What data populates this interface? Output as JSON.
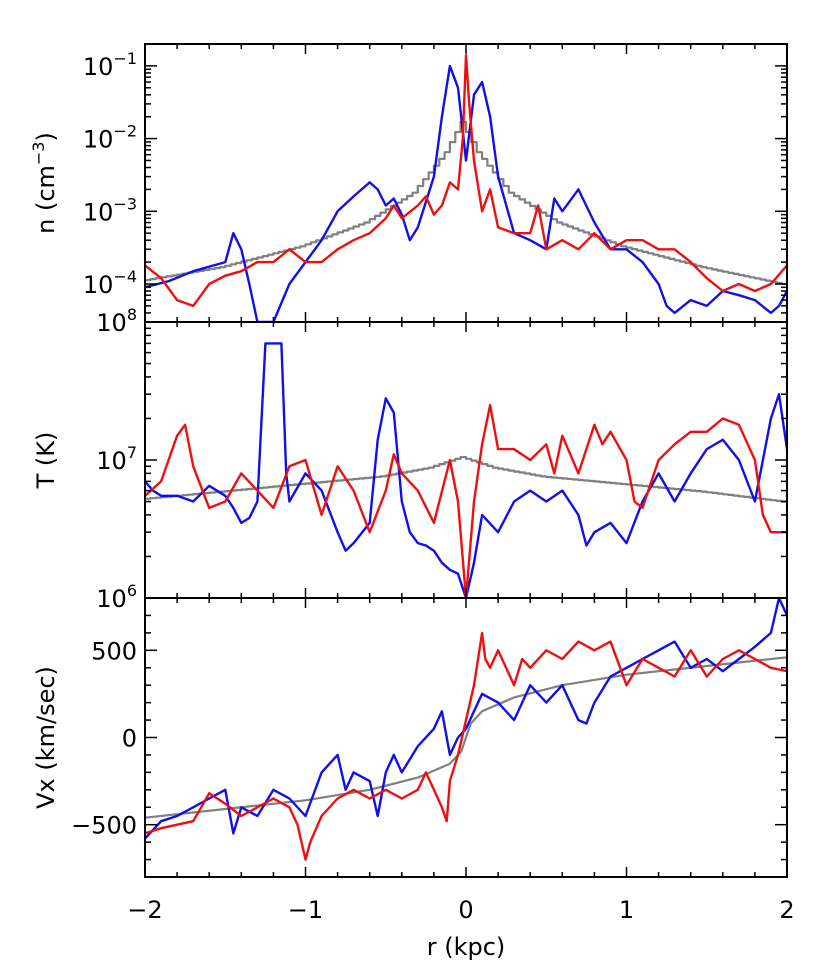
{
  "chart_data": {
    "type": "line",
    "x_label": "r (kpc)",
    "xlim": [
      -2,
      2
    ],
    "x_ticks": [
      -2,
      -1,
      0,
      1,
      2
    ],
    "x_tick_labels": [
      "−2",
      "−1",
      "0",
      "1",
      "2"
    ],
    "colors": {
      "blue": "#1010ee",
      "red": "#ee1010",
      "gray": "#808080"
    },
    "panels": [
      {
        "id": "density",
        "ylabel_main": "n (cm",
        "ylabel_sup": "−3",
        "ylabel_close": ")",
        "y_scale": "log",
        "ylim": [
          3e-05,
          0.2
        ],
        "y_ticks": [
          {
            "value": 0.0001,
            "base": "10",
            "exp": "−4"
          },
          {
            "value": 0.001,
            "base": "10",
            "exp": "−3"
          },
          {
            "value": 0.01,
            "base": "10",
            "exp": "−2"
          },
          {
            "value": 0.1,
            "base": "10",
            "exp": "−1"
          }
        ],
        "series": [
          {
            "color": "gray",
            "step": true,
            "x": [
              -2,
              -1.5,
              -1.0,
              -0.6,
              -0.3,
              -0.1,
              0,
              0.1,
              0.3,
              0.6,
              1.0,
              1.5,
              2
            ],
            "y": [
              0.00011,
              0.00017,
              0.00033,
              0.0007,
              0.0018,
              0.0065,
              0.017,
              0.0065,
              0.0018,
              0.0007,
              0.00033,
              0.00017,
              0.0001
            ]
          },
          {
            "color": "blue",
            "x": [
              -2,
              -1.85,
              -1.7,
              -1.5,
              -1.45,
              -1.4,
              -1.35,
              -1.3,
              -1.2,
              -1.1,
              -1.0,
              -0.9,
              -0.8,
              -0.7,
              -0.6,
              -0.55,
              -0.5,
              -0.45,
              -0.4,
              -0.35,
              -0.3,
              -0.2,
              -0.15,
              -0.1,
              -0.05,
              0,
              0.05,
              0.1,
              0.15,
              0.2,
              0.3,
              0.4,
              0.5,
              0.55,
              0.6,
              0.7,
              0.8,
              0.9,
              1.0,
              1.1,
              1.2,
              1.25,
              1.3,
              1.4,
              1.5,
              1.6,
              1.7,
              1.8,
              1.9,
              1.95,
              2
            ],
            "y": [
              9e-05,
              0.00011,
              0.00015,
              0.0002,
              0.0005,
              0.0003,
              0.0001,
              3e-05,
              3e-05,
              0.0001,
              0.0002,
              0.0004,
              0.001,
              0.0016,
              0.0025,
              0.002,
              0.0012,
              0.0015,
              0.0009,
              0.0004,
              0.0006,
              0.003,
              0.02,
              0.1,
              0.05,
              0.005,
              0.04,
              0.06,
              0.02,
              0.003,
              0.0005,
              0.0004,
              0.0003,
              0.0015,
              0.001,
              0.002,
              0.0007,
              0.0003,
              0.0003,
              0.0002,
              0.0001,
              5e-05,
              4e-05,
              6e-05,
              5e-05,
              8e-05,
              7e-05,
              6e-05,
              4e-05,
              5e-05,
              8e-05
            ]
          },
          {
            "color": "red",
            "x": [
              -2,
              -1.9,
              -1.8,
              -1.7,
              -1.6,
              -1.5,
              -1.4,
              -1.3,
              -1.2,
              -1.1,
              -1.0,
              -0.9,
              -0.8,
              -0.7,
              -0.6,
              -0.5,
              -0.45,
              -0.4,
              -0.3,
              -0.25,
              -0.2,
              -0.15,
              -0.1,
              -0.05,
              -0.02,
              0,
              0.02,
              0.05,
              0.1,
              0.15,
              0.2,
              0.3,
              0.4,
              0.45,
              0.5,
              0.6,
              0.7,
              0.8,
              0.9,
              1.0,
              1.1,
              1.2,
              1.3,
              1.4,
              1.5,
              1.6,
              1.7,
              1.8,
              1.9,
              2
            ],
            "y": [
              0.00018,
              0.00012,
              6e-05,
              5e-05,
              0.0001,
              0.00013,
              0.00015,
              0.0002,
              0.0002,
              0.0003,
              0.0002,
              0.0002,
              0.0003,
              0.0004,
              0.0005,
              0.0008,
              0.0012,
              0.0008,
              0.0012,
              0.0016,
              0.0009,
              0.0012,
              0.0025,
              0.002,
              0.01,
              0.14,
              0.03,
              0.005,
              0.001,
              0.002,
              0.0006,
              0.0005,
              0.0005,
              0.0012,
              0.0003,
              0.0004,
              0.0003,
              0.0005,
              0.0003,
              0.0004,
              0.0004,
              0.0003,
              0.0003,
              0.0002,
              0.00012,
              8e-05,
              0.0001,
              8e-05,
              0.0001,
              0.00018
            ]
          }
        ]
      },
      {
        "id": "temperature",
        "ylabel_main": "T (K)",
        "ylabel_sup": "",
        "ylabel_close": "",
        "y_scale": "log",
        "ylim": [
          1000000.0,
          100000000.0
        ],
        "y_ticks": [
          {
            "value": 1000000.0,
            "base": "10",
            "exp": "6"
          },
          {
            "value": 10000000.0,
            "base": "10",
            "exp": "7"
          },
          {
            "value": 100000000.0,
            "base": "10",
            "exp": "8"
          }
        ],
        "series": [
          {
            "color": "gray",
            "step": true,
            "x": [
              -2,
              -1.5,
              -1.0,
              -0.5,
              -0.2,
              0,
              0.2,
              0.5,
              1.0,
              1.5,
              2
            ],
            "y": [
              5200000.0,
              5900000.0,
              6700000.0,
              7600000.0,
              8800000.0,
              10500000.0,
              8800000.0,
              7600000.0,
              6700000.0,
              5900000.0,
              5000000.0
            ]
          },
          {
            "color": "blue",
            "x": [
              -2,
              -1.95,
              -1.9,
              -1.8,
              -1.7,
              -1.6,
              -1.5,
              -1.45,
              -1.4,
              -1.35,
              -1.3,
              -1.25,
              -1.15,
              -1.12,
              -1.1,
              -1.0,
              -0.9,
              -0.8,
              -0.75,
              -0.7,
              -0.6,
              -0.55,
              -0.5,
              -0.45,
              -0.4,
              -0.35,
              -0.3,
              -0.25,
              -0.2,
              -0.15,
              -0.1,
              -0.05,
              0,
              0.05,
              0.1,
              0.2,
              0.3,
              0.4,
              0.5,
              0.6,
              0.7,
              0.75,
              0.8,
              0.9,
              1.0,
              1.1,
              1.2,
              1.3,
              1.4,
              1.5,
              1.6,
              1.7,
              1.8,
              1.9,
              1.95,
              2
            ],
            "y": [
              7000000.0,
              6000000.0,
              5500000.0,
              5500000.0,
              5000000.0,
              6500000.0,
              5500000.0,
              4500000.0,
              3500000.0,
              3800000.0,
              5000000.0,
              70000000.0,
              70000000.0,
              8000000.0,
              5000000.0,
              8000000.0,
              6000000.0,
              3000000.0,
              2200000.0,
              2500000.0,
              3500000.0,
              14000000.0,
              28000000.0,
              22000000.0,
              5000000.0,
              3000000.0,
              2500000.0,
              2400000.0,
              2200000.0,
              1800000.0,
              1600000.0,
              1500000.0,
              1000000.0,
              1800000.0,
              4000000.0,
              3000000.0,
              5000000.0,
              6000000.0,
              5000000.0,
              6000000.0,
              4000000.0,
              2400000.0,
              3000000.0,
              3500000.0,
              2500000.0,
              5000000.0,
              8000000.0,
              5000000.0,
              8000000.0,
              12000000.0,
              14000000.0,
              10000000.0,
              5000000.0,
              20000000.0,
              30000000.0,
              12000000.0
            ]
          },
          {
            "color": "red",
            "x": [
              -2,
              -1.9,
              -1.8,
              -1.75,
              -1.7,
              -1.6,
              -1.5,
              -1.4,
              -1.3,
              -1.2,
              -1.1,
              -1.0,
              -0.9,
              -0.8,
              -0.7,
              -0.6,
              -0.5,
              -0.45,
              -0.4,
              -0.3,
              -0.2,
              -0.1,
              -0.05,
              0,
              0.05,
              0.1,
              0.15,
              0.2,
              0.3,
              0.4,
              0.5,
              0.55,
              0.6,
              0.7,
              0.8,
              0.85,
              0.9,
              1.0,
              1.05,
              1.1,
              1.2,
              1.3,
              1.4,
              1.5,
              1.6,
              1.7,
              1.8,
              1.85,
              1.9,
              2
            ],
            "y": [
              5500000.0,
              7000000.0,
              15000000.0,
              18000000.0,
              9000000.0,
              4500000.0,
              5000000.0,
              8000000.0,
              6000000.0,
              4500000.0,
              9000000.0,
              10000000.0,
              4000000.0,
              9000000.0,
              6000000.0,
              3000000.0,
              6000000.0,
              11000000.0,
              8000000.0,
              6000000.0,
              3500000.0,
              10000000.0,
              5000000.0,
              1000000.0,
              5000000.0,
              13000000.0,
              25000000.0,
              12000000.0,
              12000000.0,
              10000000.0,
              13000000.0,
              8000000.0,
              15000000.0,
              8000000.0,
              18000000.0,
              13000000.0,
              16000000.0,
              10000000.0,
              5000000.0,
              4500000.0,
              10000000.0,
              13000000.0,
              16000000.0,
              16000000.0,
              20000000.0,
              18000000.0,
              10000000.0,
              4000000.0,
              3000000.0,
              3000000.0
            ]
          }
        ]
      },
      {
        "id": "velocity",
        "ylabel_main": "Vx (km/sec)",
        "ylabel_sup": "",
        "ylabel_close": "",
        "y_scale": "linear",
        "ylim": [
          -800,
          800
        ],
        "y_ticks": [
          {
            "value": -500,
            "label": "−500"
          },
          {
            "value": 0,
            "label": "0"
          },
          {
            "value": 500,
            "label": "500"
          }
        ],
        "series": [
          {
            "color": "gray",
            "x": [
              -2,
              -1.5,
              -1.0,
              -0.6,
              -0.3,
              -0.1,
              -0.03,
              0,
              0.03,
              0.1,
              0.3,
              0.6,
              1.0,
              1.5,
              2
            ],
            "y": [
              -460,
              -410,
              -360,
              -300,
              -230,
              -150,
              -80,
              0,
              80,
              150,
              230,
              300,
              360,
              410,
              460
            ]
          },
          {
            "color": "blue",
            "x": [
              -2,
              -1.9,
              -1.8,
              -1.7,
              -1.6,
              -1.5,
              -1.45,
              -1.4,
              -1.3,
              -1.2,
              -1.1,
              -1.0,
              -0.9,
              -0.8,
              -0.75,
              -0.7,
              -0.6,
              -0.55,
              -0.5,
              -0.45,
              -0.4,
              -0.3,
              -0.2,
              -0.15,
              -0.1,
              -0.05,
              0,
              0.05,
              0.1,
              0.2,
              0.3,
              0.4,
              0.5,
              0.6,
              0.7,
              0.75,
              0.8,
              0.9,
              1.0,
              1.1,
              1.2,
              1.3,
              1.4,
              1.5,
              1.6,
              1.7,
              1.8,
              1.9,
              1.95,
              2
            ],
            "y": [
              -580,
              -480,
              -450,
              -400,
              -350,
              -300,
              -550,
              -400,
              -450,
              -300,
              -350,
              -450,
              -200,
              -100,
              -300,
              -200,
              -250,
              -450,
              -200,
              -100,
              -200,
              -50,
              50,
              150,
              -100,
              0,
              50,
              150,
              250,
              200,
              100,
              300,
              200,
              300,
              100,
              80,
              200,
              350,
              400,
              450,
              500,
              550,
              400,
              450,
              380,
              450,
              520,
              600,
              800,
              700
            ]
          },
          {
            "color": "red",
            "x": [
              -2,
              -1.9,
              -1.8,
              -1.7,
              -1.6,
              -1.5,
              -1.4,
              -1.3,
              -1.2,
              -1.1,
              -1.05,
              -1.0,
              -0.97,
              -0.9,
              -0.8,
              -0.7,
              -0.6,
              -0.5,
              -0.4,
              -0.3,
              -0.25,
              -0.2,
              -0.15,
              -0.12,
              -0.1,
              -0.05,
              0,
              0.05,
              0.1,
              0.12,
              0.15,
              0.2,
              0.3,
              0.35,
              0.4,
              0.5,
              0.6,
              0.7,
              0.8,
              0.9,
              1.0,
              1.1,
              1.2,
              1.3,
              1.4,
              1.5,
              1.6,
              1.7,
              1.8,
              1.9,
              2
            ],
            "y": [
              -550,
              -520,
              -500,
              -480,
              -320,
              -380,
              -450,
              -400,
              -350,
              -400,
              -500,
              -700,
              -600,
              -450,
              -350,
              -300,
              -350,
              -300,
              -350,
              -300,
              -200,
              -300,
              -400,
              -480,
              -250,
              -100,
              100,
              300,
              600,
              450,
              400,
              500,
              300,
              450,
              400,
              500,
              450,
              550,
              500,
              550,
              300,
              450,
              400,
              350,
              500,
              350,
              450,
              500,
              450,
              400,
              380
            ]
          }
        ]
      }
    ]
  }
}
